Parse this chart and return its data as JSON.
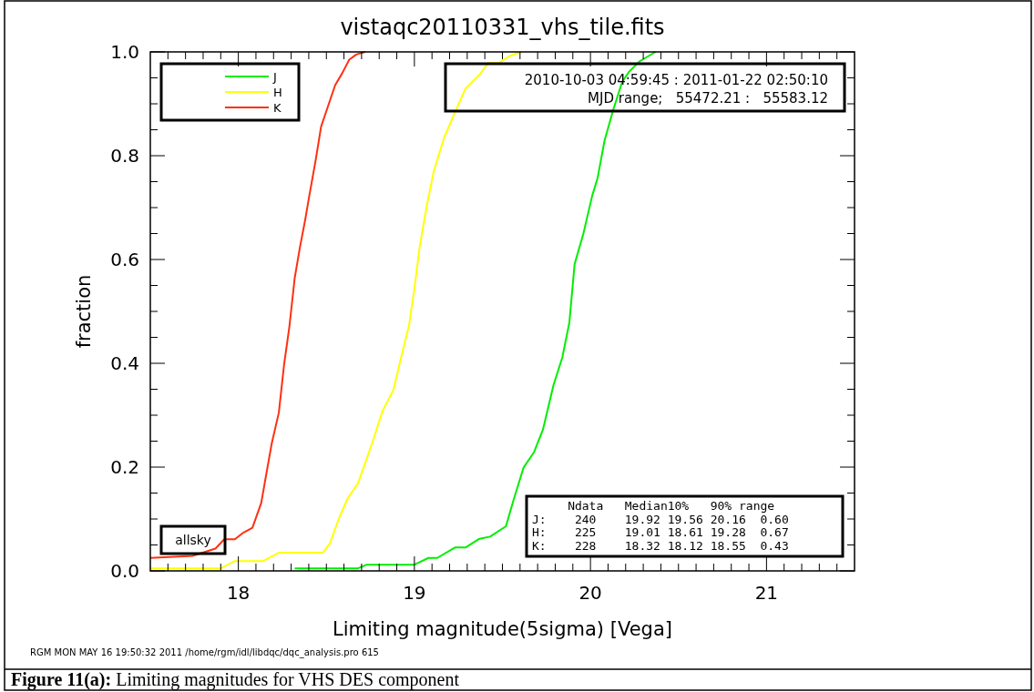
{
  "chart_data": {
    "type": "line",
    "title": "vistaqc20110331_vhs_tile.fits",
    "xlabel": "Limiting magnitude(5sigma) [Vega]",
    "ylabel": "fraction",
    "xlim": [
      17.5,
      21.5
    ],
    "ylim": [
      0,
      1
    ],
    "xticks": [
      {
        "value": 17.6,
        "label": null
      },
      {
        "value": 17.7,
        "label": null
      },
      {
        "value": 17.8,
        "label": null
      },
      {
        "value": 17.9,
        "label": null
      },
      18,
      {
        "value": 18.1,
        "label": null
      },
      {
        "value": 18.2,
        "label": null
      },
      {
        "value": 18.3,
        "label": null
      },
      {
        "value": 18.4,
        "label": null
      },
      {
        "value": 18.5,
        "label": null
      },
      {
        "value": 18.6,
        "label": null
      },
      {
        "value": 18.7,
        "label": null
      },
      {
        "value": 18.8,
        "label": null
      },
      {
        "value": 18.9,
        "label": null
      },
      19,
      {
        "value": 19.1,
        "label": null
      },
      {
        "value": 19.2,
        "label": null
      },
      {
        "value": 19.3,
        "label": null
      },
      {
        "value": 19.4,
        "label": null
      },
      {
        "value": 19.5,
        "label": null
      },
      {
        "value": 19.6,
        "label": null
      },
      {
        "value": 19.7,
        "label": null
      },
      {
        "value": 19.8,
        "label": null
      },
      {
        "value": 19.9,
        "label": null
      },
      20,
      {
        "value": 20.1,
        "label": null
      },
      {
        "value": 20.2,
        "label": null
      },
      {
        "value": 20.3,
        "label": null
      },
      {
        "value": 20.4,
        "label": null
      },
      {
        "value": 20.5,
        "label": null
      },
      {
        "value": 20.6,
        "label": null
      },
      {
        "value": 20.7,
        "label": null
      },
      {
        "value": 20.8,
        "label": null
      },
      {
        "value": 20.9,
        "label": null
      },
      21,
      {
        "value": 21.1,
        "label": null
      },
      {
        "value": 21.2,
        "label": null
      },
      {
        "value": 21.3,
        "label": null
      },
      {
        "value": 21.4,
        "label": null
      }
    ],
    "yticks": [
      {
        "value": 0,
        "label": "0.0"
      },
      {
        "value": 0.05,
        "label": null
      },
      {
        "value": 0.1,
        "label": null
      },
      {
        "value": 0.15,
        "label": null
      },
      {
        "value": 0.2,
        "label": "0.2"
      },
      {
        "value": 0.25,
        "label": null
      },
      {
        "value": 0.3,
        "label": null
      },
      {
        "value": 0.35,
        "label": null
      },
      {
        "value": 0.4,
        "label": "0.4"
      },
      {
        "value": 0.45,
        "label": null
      },
      {
        "value": 0.5,
        "label": null
      },
      {
        "value": 0.55,
        "label": null
      },
      {
        "value": 0.6,
        "label": "0.6"
      },
      {
        "value": 0.65,
        "label": null
      },
      {
        "value": 0.7,
        "label": null
      },
      {
        "value": 0.75,
        "label": null
      },
      {
        "value": 0.8,
        "label": "0.8"
      },
      {
        "value": 0.85,
        "label": null
      },
      {
        "value": 0.9,
        "label": null
      },
      {
        "value": 0.95,
        "label": null
      },
      {
        "value": 1,
        "label": "1.0"
      }
    ],
    "grid": false,
    "legend": "top left",
    "marker": "none",
    "line_style": "solid",
    "series": [
      {
        "name": "J",
        "color": "#00ee00",
        "x": [
          18.32,
          18.68,
          18.73,
          19.0,
          19.08,
          19.13,
          19.23,
          19.29,
          19.37,
          19.43,
          19.52,
          19.56,
          19.62,
          19.68,
          19.73,
          19.79,
          19.84,
          19.88,
          19.91,
          19.96,
          20.01,
          20.04,
          20.08,
          20.13,
          20.18,
          20.22,
          20.28,
          20.37
        ],
        "values": [
          0.005,
          0.005,
          0.012,
          0.012,
          0.025,
          0.025,
          0.045,
          0.045,
          0.062,
          0.066,
          0.086,
          0.133,
          0.199,
          0.229,
          0.272,
          0.358,
          0.411,
          0.478,
          0.591,
          0.65,
          0.723,
          0.756,
          0.829,
          0.889,
          0.942,
          0.962,
          0.982,
          1.0
        ]
      },
      {
        "name": "H",
        "color": "#ffff00",
        "x": [
          17.5,
          17.9,
          17.98,
          18.14,
          18.23,
          18.48,
          18.52,
          18.57,
          18.62,
          18.68,
          18.76,
          18.82,
          18.88,
          18.92,
          18.97,
          19.0,
          19.03,
          19.07,
          19.11,
          19.17,
          19.23,
          19.29,
          19.37,
          19.42,
          19.48,
          19.54,
          19.61
        ],
        "values": [
          0.005,
          0.005,
          0.019,
          0.019,
          0.035,
          0.035,
          0.053,
          0.1,
          0.139,
          0.169,
          0.246,
          0.309,
          0.348,
          0.405,
          0.474,
          0.544,
          0.624,
          0.703,
          0.77,
          0.836,
          0.883,
          0.929,
          0.956,
          0.979,
          0.979,
          0.992,
          1.0
        ]
      },
      {
        "name": "K",
        "color": "#ff3010",
        "x": [
          17.5,
          17.74,
          17.87,
          17.92,
          17.98,
          18.03,
          18.08,
          18.13,
          18.16,
          18.19,
          18.23,
          18.26,
          18.29,
          18.32,
          18.35,
          18.38,
          18.4,
          18.44,
          18.47,
          18.51,
          18.55,
          18.59,
          18.63,
          18.67,
          18.72
        ],
        "values": [
          0.025,
          0.029,
          0.043,
          0.061,
          0.061,
          0.074,
          0.083,
          0.131,
          0.189,
          0.246,
          0.305,
          0.398,
          0.471,
          0.564,
          0.624,
          0.677,
          0.717,
          0.793,
          0.856,
          0.896,
          0.936,
          0.959,
          0.985,
          0.995,
          1.0
        ]
      }
    ],
    "annotations": [
      "2010-10-03 04:59:45 : 2011-01-22 02:50:10",
      "MJD range;   55472.21 :   55583.12",
      "     Ndata   Median10%   90% range",
      "J:    240    19.92 19.56 20.16  0.60",
      "H:    225    19.01 18.61 19.28  0.67",
      "K:    228    18.32 18.12 18.55  0.43",
      "allsky",
      "RGM MON MAY 16 19:50:32 2011 /home/rgm/idl/libdqc/dqc_analysis.pro 615",
      "Figure 11(a):",
      "Limiting magnitudes for VHS DES component"
    ]
  }
}
